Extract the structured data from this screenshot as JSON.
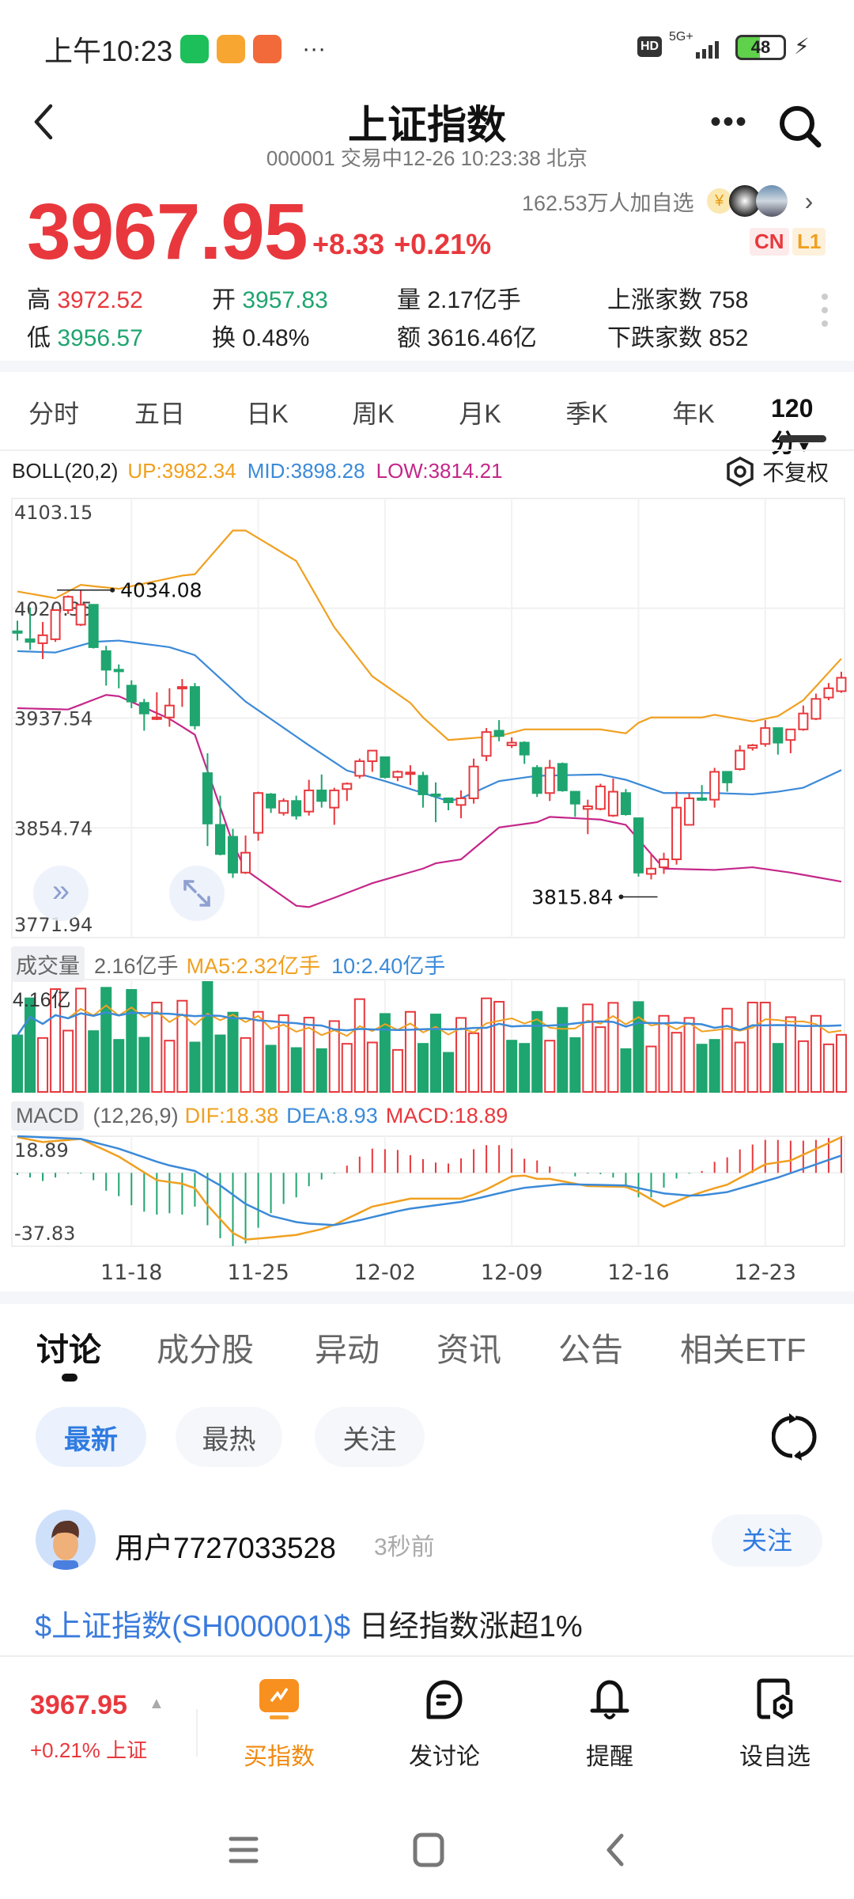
{
  "status_bar": {
    "time": "上午10:23",
    "more": "···",
    "hd": "HD",
    "network": "5G+",
    "battery": "48"
  },
  "header": {
    "title": "上证指数",
    "subtitle": "000001 交易中12-26 10:23:38 北京"
  },
  "quote": {
    "followers": "162.53万人加自选",
    "price": "3967.95",
    "change": "+8.33",
    "change_pct": "+0.21%",
    "badges": [
      "CN",
      "L1"
    ],
    "high_label": "高",
    "high": "3972.52",
    "low_label": "低",
    "low": "3956.57",
    "open_label": "开",
    "open": "3957.83",
    "turnover_label": "换",
    "turnover": "0.48%",
    "volume_label": "量",
    "volume": "2.17亿手",
    "amount_label": "额",
    "amount": "3616.46亿",
    "up_label": "上涨家数",
    "up_count": "758",
    "down_label": "下跌家数",
    "down_count": "852"
  },
  "period_tabs": [
    "分时",
    "五日",
    "日K",
    "周K",
    "月K",
    "季K",
    "年K",
    "120分"
  ],
  "active_period": "120分",
  "indicators": {
    "boll": {
      "name": "BOLL(20,2)",
      "up": "UP:3982.34",
      "mid": "MID:3898.28",
      "low": "LOW:3814.21"
    },
    "adjust": "不复权",
    "volume": {
      "name": "成交量",
      "current": "2.16亿手",
      "ma5": "MA5:2.32亿手",
      "ma10": "10:2.40亿手",
      "max_label": "4.16亿"
    },
    "macd": {
      "name": "MACD",
      "params": "(12,26,9)",
      "dif": "DIF:18.38",
      "dea": "DEA:8.93",
      "macd": "MACD:18.89"
    }
  },
  "colors": {
    "up": "#e8383d",
    "down": "#1fa56f",
    "boll_up": "#f0a020",
    "boll_mid": "#3b8ad8",
    "boll_low": "#c4278a",
    "accent": "#3a7bdc"
  },
  "chart_data": {
    "type": "candlestick",
    "ylim": [
      3771.94,
      4103.15
    ],
    "y_ticks": [
      "4103.15",
      "4020.35",
      "3937.54",
      "3854.74",
      "3771.94"
    ],
    "x_ticks": [
      {
        "i": 9,
        "label": "11-18"
      },
      {
        "i": 19,
        "label": "11-25"
      },
      {
        "i": 29,
        "label": "12-02"
      },
      {
        "i": 39,
        "label": "12-09"
      },
      {
        "i": 49,
        "label": "12-16"
      },
      {
        "i": 59,
        "label": "12-23"
      }
    ],
    "high_marker": {
      "i": 5,
      "label": "4034.08"
    },
    "low_marker": {
      "i": 50,
      "label": "3815.84"
    },
    "ohlc": [
      [
        4003,
        4011,
        3996,
        4002
      ],
      [
        3997,
        4021,
        3989,
        3995
      ],
      [
        3994,
        4010,
        3982,
        4000
      ],
      [
        3997,
        4019,
        3995,
        4019
      ],
      [
        4019,
        4030,
        4016,
        4029
      ],
      [
        4008,
        4034.08,
        4007,
        4023
      ],
      [
        4023,
        4023,
        3990,
        3991
      ],
      [
        3988,
        3992,
        3962,
        3974
      ],
      [
        3974,
        3978,
        3960,
        3973
      ],
      [
        3962,
        3966,
        3945,
        3950
      ],
      [
        3949,
        3952,
        3928,
        3941
      ],
      [
        3937,
        3957,
        3936,
        3938
      ],
      [
        3938,
        3960,
        3931,
        3947
      ],
      [
        3960,
        3967,
        3946,
        3961
      ],
      [
        3961,
        3964,
        3929,
        3932
      ],
      [
        3896,
        3911,
        3841,
        3858
      ],
      [
        3857,
        3879,
        3834,
        3835
      ],
      [
        3848,
        3854,
        3817,
        3821
      ],
      [
        3821,
        3849,
        3820,
        3836
      ],
      [
        3851,
        3882,
        3845,
        3881
      ],
      [
        3880,
        3881,
        3866,
        3870
      ],
      [
        3866,
        3877,
        3864,
        3875
      ],
      [
        3875,
        3879,
        3861,
        3864
      ],
      [
        3867,
        3891,
        3864,
        3883
      ],
      [
        3883,
        3895,
        3870,
        3875
      ],
      [
        3870,
        3885,
        3857,
        3883
      ],
      [
        3884,
        3889,
        3875,
        3888
      ],
      [
        3894,
        3907,
        3892,
        3905
      ],
      [
        3905,
        3913,
        3897,
        3913
      ],
      [
        3908,
        3908,
        3892,
        3893
      ],
      [
        3893,
        3898,
        3890,
        3897
      ],
      [
        3896,
        3902,
        3887,
        3896.5
      ],
      [
        3894,
        3897,
        3870,
        3880
      ],
      [
        3880,
        3889,
        3859,
        3879
      ],
      [
        3877,
        3877,
        3868,
        3874
      ],
      [
        3872,
        3883,
        3862,
        3877
      ],
      [
        3877,
        3907,
        3873,
        3901
      ],
      [
        3909,
        3930,
        3905,
        3927
      ],
      [
        3928,
        3936,
        3920,
        3924
      ],
      [
        3917,
        3923,
        3915,
        3919
      ],
      [
        3919,
        3920,
        3903,
        3910
      ],
      [
        3900,
        3902,
        3878,
        3881
      ],
      [
        3881,
        3906,
        3875,
        3900
      ],
      [
        3903,
        3904,
        3882,
        3883
      ],
      [
        3882,
        3882,
        3863,
        3873
      ],
      [
        3869,
        3876,
        3850,
        3871
      ],
      [
        3869,
        3888,
        3868,
        3886
      ],
      [
        3864,
        3892,
        3863,
        3882
      ],
      [
        3881,
        3884,
        3864,
        3865
      ],
      [
        3862,
        3862,
        3818,
        3821
      ],
      [
        3820,
        3835,
        3815.84,
        3824
      ],
      [
        3825,
        3836,
        3820,
        3831
      ],
      [
        3831,
        3882,
        3827,
        3870
      ],
      [
        3857,
        3881,
        3857,
        3877
      ],
      [
        3877,
        3887,
        3875,
        3876
      ],
      [
        3876,
        3900,
        3870,
        3897
      ],
      [
        3897,
        3897,
        3882,
        3889
      ],
      [
        3899,
        3917,
        3898,
        3913
      ],
      [
        3915,
        3918,
        3913,
        3917
      ],
      [
        3918,
        3936,
        3916,
        3930
      ],
      [
        3930,
        3930,
        3910,
        3919
      ],
      [
        3921,
        3929,
        3911,
        3929
      ],
      [
        3929,
        3947,
        3928,
        3941
      ],
      [
        3937,
        3956,
        3936,
        3952
      ],
      [
        3953,
        3964,
        3951,
        3960
      ],
      [
        3957.83,
        3972.52,
        3956.57,
        3967.95
      ]
    ],
    "boll_up": [
      [
        0,
        4033
      ],
      [
        3,
        4028
      ],
      [
        5,
        4038
      ],
      [
        8,
        4035
      ],
      [
        13,
        4045
      ],
      [
        14,
        4046
      ],
      [
        17,
        4079
      ],
      [
        18,
        4079
      ],
      [
        22,
        4056
      ],
      [
        25,
        4006
      ],
      [
        28,
        3969
      ],
      [
        31,
        3949
      ],
      [
        32,
        3938
      ],
      [
        34,
        3921
      ],
      [
        38,
        3924
      ],
      [
        40,
        3929
      ],
      [
        46,
        3929
      ],
      [
        48,
        3926
      ],
      [
        49,
        3934
      ],
      [
        50,
        3938
      ],
      [
        54,
        3938
      ],
      [
        55,
        3940
      ],
      [
        58,
        3935
      ],
      [
        60,
        3939
      ],
      [
        62,
        3951
      ],
      [
        65,
        3982.34
      ]
    ],
    "boll_mid": [
      [
        0,
        3988
      ],
      [
        3,
        3987
      ],
      [
        6,
        3995
      ],
      [
        8,
        3996
      ],
      [
        12,
        3991
      ],
      [
        14,
        3985
      ],
      [
        18,
        3950
      ],
      [
        23,
        3917
      ],
      [
        26,
        3898
      ],
      [
        29,
        3890
      ],
      [
        32,
        3881
      ],
      [
        34,
        3875
      ],
      [
        35,
        3877
      ],
      [
        38,
        3890
      ],
      [
        41,
        3894
      ],
      [
        46,
        3895
      ],
      [
        48,
        3891
      ],
      [
        51,
        3881
      ],
      [
        55,
        3881
      ],
      [
        58,
        3880
      ],
      [
        60,
        3882
      ],
      [
        62,
        3885
      ],
      [
        65,
        3898.28
      ]
    ],
    "boll_low": [
      [
        0,
        3945
      ],
      [
        4,
        3944
      ],
      [
        7,
        3955
      ],
      [
        8,
        3954
      ],
      [
        12,
        3937
      ],
      [
        14,
        3925
      ],
      [
        17,
        3843
      ],
      [
        18,
        3823
      ],
      [
        22,
        3796
      ],
      [
        23,
        3795
      ],
      [
        25,
        3802
      ],
      [
        28,
        3813
      ],
      [
        32,
        3824
      ],
      [
        33,
        3828
      ],
      [
        35,
        3831
      ],
      [
        38,
        3855
      ],
      [
        41,
        3859
      ],
      [
        42,
        3863
      ],
      [
        46,
        3861
      ],
      [
        48,
        3857
      ],
      [
        51,
        3824
      ],
      [
        55,
        3823
      ],
      [
        58,
        3825
      ],
      [
        61,
        3821
      ],
      [
        65,
        3814.21
      ]
    ],
    "volume_unit": "亿手",
    "volume_max": 4.16,
    "volume": [
      2.14,
      3.54,
      2.04,
      3.89,
      2.32,
      3.91,
      2.3,
      3.94,
      1.97,
      3.86,
      2.05,
      3.38,
      1.94,
      3.45,
      1.87,
      4.16,
      2.14,
      3.0,
      2.04,
      3.03,
      1.75,
      2.9,
      1.66,
      2.81,
      1.62,
      2.68,
      1.82,
      3.51,
      1.87,
      2.95,
      1.59,
      3.03,
      1.82,
      2.93,
      1.48,
      2.8,
      2.22,
      3.54,
      3.41,
      1.94,
      1.82,
      3.03,
      1.94,
      3.18,
      2.04,
      3.31,
      2.45,
      3.37,
      1.62,
      3.4,
      1.72,
      2.88,
      2.24,
      2.8,
      1.79,
      1.97,
      3.15,
      1.87,
      3.38,
      3.38,
      1.82,
      2.83,
      1.92,
      2.88,
      1.8,
      2.16
    ],
    "volume_colors": "ggrrrrgggggrrrggggrrgrgrgrrrrgrrgggrrrrgggrggrrrggrrrrggrrrrgrrrrr",
    "macd_ylim": [
      -37.83,
      18.89
    ],
    "macd_ticks": [
      "18.89",
      "-37.83"
    ],
    "macd_hist": [
      -1.1,
      -2.4,
      -4.2,
      -2.4,
      -0.4,
      -0.4,
      -3.8,
      -9.2,
      -12,
      -16.7,
      -20,
      -21.5,
      -20.8,
      -21.5,
      -17.4,
      -27,
      -33.7,
      -37.8,
      -36.4,
      -28.3,
      -20.8,
      -16,
      -12.6,
      -6.9,
      -3.4,
      -0.4,
      3.7,
      8.4,
      12.5,
      12.2,
      11.8,
      9.1,
      7.1,
      5.3,
      4.8,
      7.5,
      12.2,
      14.3,
      14.3,
      12.5,
      7.3,
      6.4,
      3.3,
      0.1,
      -1.8,
      -0.4,
      -0.7,
      -2.4,
      -7.9,
      -12.6,
      -12.6,
      -7.6,
      -2.9,
      -0.4,
      1,
      5.7,
      8,
      12.1,
      14.6,
      17,
      17,
      16.6,
      16.6,
      17,
      18,
      18.89
    ],
    "macd_dif": [
      [
        0,
        18.4
      ],
      [
        2,
        15.9
      ],
      [
        5,
        17.5
      ],
      [
        8,
        8.4
      ],
      [
        11,
        -3.8
      ],
      [
        13,
        -5.6
      ],
      [
        14,
        -7.9
      ],
      [
        15,
        -16.7
      ],
      [
        17,
        -31
      ],
      [
        18,
        -34.4
      ],
      [
        20,
        -33.3
      ],
      [
        22,
        -32
      ],
      [
        24.5,
        -28.3
      ],
      [
        28,
        -17.4
      ],
      [
        31,
        -13.3
      ],
      [
        35,
        -13.3
      ],
      [
        36.6,
        -9.9
      ],
      [
        39,
        -1.8
      ],
      [
        40,
        -1.4
      ],
      [
        41,
        -3.1
      ],
      [
        42,
        -3.1
      ],
      [
        45,
        -6.8
      ],
      [
        48,
        -7.2
      ],
      [
        49,
        -9.9
      ],
      [
        51,
        -17.4
      ],
      [
        53,
        -12
      ],
      [
        55,
        -7.9
      ],
      [
        56,
        -6.1
      ],
      [
        59,
        4.4
      ],
      [
        61,
        6.4
      ],
      [
        65,
        18.38
      ]
    ],
    "macd_dea": [
      [
        0,
        18.9
      ],
      [
        5,
        17.5
      ],
      [
        8,
        12.5
      ],
      [
        11.6,
        4.4
      ],
      [
        14,
        1
      ],
      [
        16,
        -6.5
      ],
      [
        18,
        -16
      ],
      [
        20,
        -22.2
      ],
      [
        22.4,
        -26
      ],
      [
        25,
        -26.9
      ],
      [
        26.7,
        -24.9
      ],
      [
        30.6,
        -18.8
      ],
      [
        35.3,
        -14.7
      ],
      [
        39.7,
        -7.9
      ],
      [
        43,
        -5.8
      ],
      [
        48,
        -6.5
      ],
      [
        51,
        -10.6
      ],
      [
        53.5,
        -12
      ],
      [
        56,
        -9.9
      ],
      [
        60,
        -2.4
      ],
      [
        65,
        8.93
      ]
    ]
  },
  "discussion": {
    "tabs": [
      "讨论",
      "成分股",
      "异动",
      "资讯",
      "公告",
      "相关ETF"
    ],
    "filters": [
      "最新",
      "最热",
      "关注"
    ],
    "post": {
      "user": "用户7727033528",
      "time": "3秒前",
      "follow": "关注",
      "tag": "$上证指数(SH000001)$",
      "text": " 日经指数涨超1%"
    }
  },
  "bottom_bar": {
    "price": "3967.95",
    "change": "+0.21% 上证",
    "actions": [
      "买指数",
      "发讨论",
      "提醒",
      "设自选"
    ]
  }
}
